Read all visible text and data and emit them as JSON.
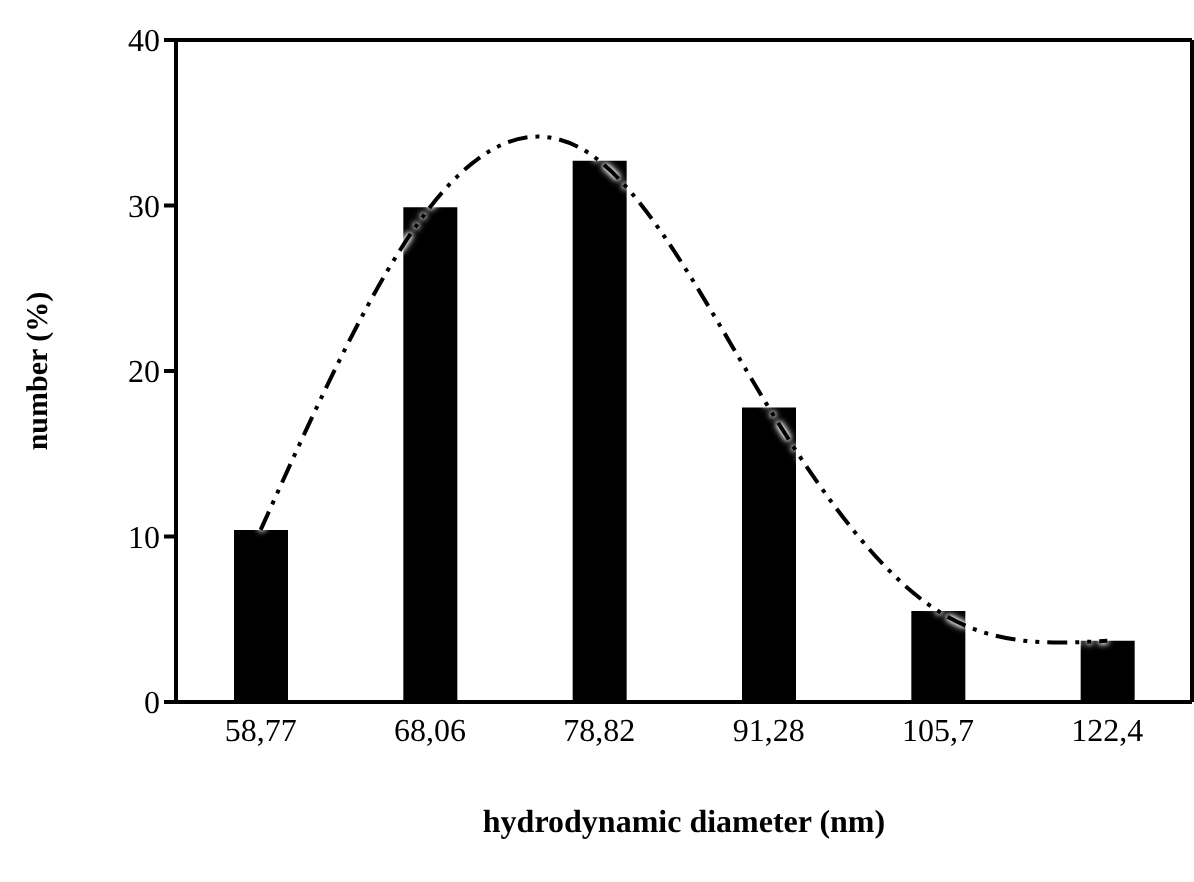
{
  "chart_data": {
    "type": "bar",
    "xlabel": "hydrodynamic diameter  (nm)",
    "ylabel": "number (%)",
    "categories": [
      "58,77",
      "68,06",
      "78,82",
      "91,28",
      "105,7",
      "122,4"
    ],
    "series": [
      {
        "color": "#000000",
        "values": [
          10.4,
          29.9,
          32.7,
          17.8,
          5.5,
          3.7
        ]
      },
      {
        "type": "line",
        "color": "#000000",
        "line_style": "dashed",
        "marker": "none",
        "values": [
          10.4,
          29.9,
          32.7,
          17.8,
          5.5,
          3.7
        ]
      }
    ],
    "ylim": [
      0,
      40
    ],
    "yticks": [
      0,
      10,
      20,
      30,
      40
    ],
    "grid": false,
    "legend": false
  }
}
